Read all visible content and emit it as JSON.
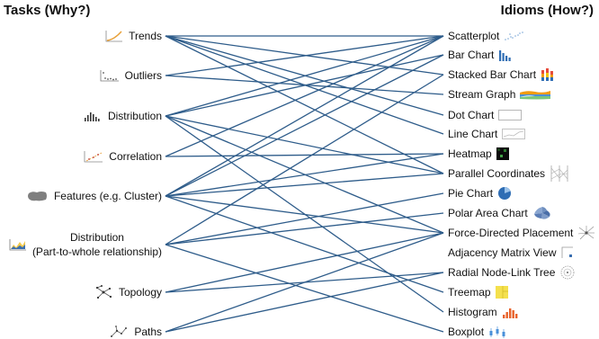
{
  "header": {
    "left_title": "Tasks (Why?)",
    "right_title": "Idioms (How?)"
  },
  "line_color": "#2e5c8a",
  "tasks": [
    {
      "key": "trends",
      "label": "Trends",
      "icon": "trend-line-icon"
    },
    {
      "key": "outliers",
      "label": "Outliers",
      "icon": "scatter-outlier-icon"
    },
    {
      "key": "distribution",
      "label": "Distribution",
      "icon": "histogram-bars-icon"
    },
    {
      "key": "correlation",
      "label": "Correlation",
      "icon": "correlation-scatter-icon"
    },
    {
      "key": "features",
      "label": "Features (e.g. Cluster)",
      "icon": "cluster-blob-icon"
    },
    {
      "key": "part_whole",
      "label": "Distribution",
      "label2": "(Part-to-whole relationship)",
      "icon": "area-chart-icon"
    },
    {
      "key": "topology",
      "label": "Topology",
      "icon": "network-icon"
    },
    {
      "key": "paths",
      "label": "Paths",
      "icon": "path-graph-icon"
    }
  ],
  "idioms": [
    {
      "key": "scatterplot",
      "label": "Scatterplot",
      "icon": "scatterplot-icon"
    },
    {
      "key": "bar",
      "label": "Bar Chart",
      "icon": "bar-chart-icon"
    },
    {
      "key": "stacked_bar",
      "label": "Stacked Bar Chart",
      "icon": "stacked-bar-icon"
    },
    {
      "key": "stream",
      "label": "Stream Graph",
      "icon": "stream-graph-icon"
    },
    {
      "key": "dot",
      "label": "Dot Chart",
      "icon": "dot-chart-icon"
    },
    {
      "key": "line",
      "label": "Line Chart",
      "icon": "line-chart-icon"
    },
    {
      "key": "heatmap",
      "label": "Heatmap",
      "icon": "heatmap-icon"
    },
    {
      "key": "parallel",
      "label": "Parallel Coordinates",
      "icon": "parallel-coordinates-icon"
    },
    {
      "key": "pie",
      "label": "Pie Chart",
      "icon": "pie-chart-icon"
    },
    {
      "key": "polar",
      "label": "Polar Area Chart",
      "icon": "polar-area-icon"
    },
    {
      "key": "force",
      "label": "Force-Directed Placement",
      "icon": "force-directed-icon"
    },
    {
      "key": "adjacency",
      "label": "Adjacency Matrix View",
      "icon": "adjacency-matrix-icon"
    },
    {
      "key": "radial",
      "label": "Radial Node-Link Tree",
      "icon": "radial-tree-icon"
    },
    {
      "key": "treemap",
      "label": "Treemap",
      "icon": "treemap-icon"
    },
    {
      "key": "histogram",
      "label": "Histogram",
      "icon": "histogram-icon"
    },
    {
      "key": "boxplot",
      "label": "Boxplot",
      "icon": "boxplot-icon"
    }
  ],
  "connections": [
    [
      "trends",
      "scatterplot"
    ],
    [
      "trends",
      "stacked_bar"
    ],
    [
      "trends",
      "dot"
    ],
    [
      "trends",
      "line"
    ],
    [
      "trends",
      "parallel"
    ],
    [
      "outliers",
      "scatterplot"
    ],
    [
      "outliers",
      "stream"
    ],
    [
      "distribution",
      "scatterplot"
    ],
    [
      "distribution",
      "bar"
    ],
    [
      "distribution",
      "parallel"
    ],
    [
      "distribution",
      "force"
    ],
    [
      "distribution",
      "histogram"
    ],
    [
      "correlation",
      "scatterplot"
    ],
    [
      "correlation",
      "heatmap"
    ],
    [
      "features",
      "scatterplot"
    ],
    [
      "features",
      "bar"
    ],
    [
      "features",
      "heatmap"
    ],
    [
      "features",
      "parallel"
    ],
    [
      "features",
      "force"
    ],
    [
      "features",
      "treemap"
    ],
    [
      "part_whole",
      "stacked_bar"
    ],
    [
      "part_whole",
      "pie"
    ],
    [
      "part_whole",
      "polar"
    ],
    [
      "part_whole",
      "boxplot"
    ],
    [
      "topology",
      "force"
    ],
    [
      "topology",
      "radial"
    ],
    [
      "paths",
      "force"
    ],
    [
      "paths",
      "radial"
    ]
  ]
}
